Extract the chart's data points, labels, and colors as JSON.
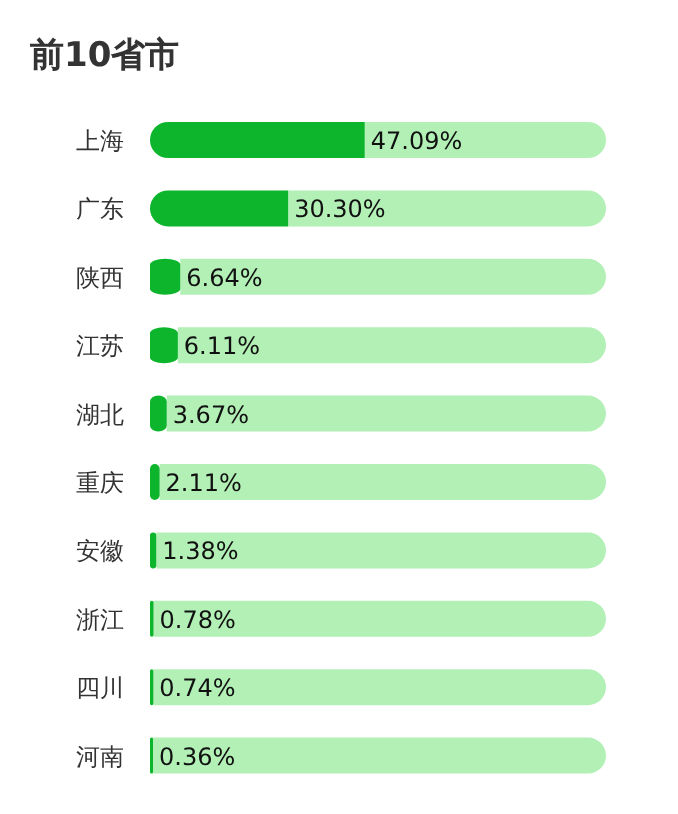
{
  "chart_data": {
    "type": "bar",
    "orientation": "horizontal",
    "stacked": true,
    "title": "前10省市",
    "categories": [
      "上海",
      "广东",
      "陕西",
      "江苏",
      "湖北",
      "重庆",
      "安徽",
      "浙江",
      "四川",
      "河南"
    ],
    "series": [
      {
        "color": "#0db52c",
        "values": [
          47.09,
          30.3,
          6.64,
          6.11,
          3.67,
          2.11,
          1.38,
          0.78,
          0.74,
          0.36
        ],
        "value_labels": [
          "47.09%",
          "30.30%",
          "6.64%",
          "6.11%",
          "3.67%",
          "2.11%",
          "1.38%",
          "0.78%",
          "0.74%",
          "0.36%"
        ]
      },
      {
        "color": "#b2f0b6",
        "values": [
          52.91,
          69.7,
          93.36,
          93.89,
          96.33,
          97.89,
          98.62,
          99.22,
          99.26,
          99.64
        ]
      }
    ],
    "xlim": [
      0,
      100
    ],
    "tick_labels": "y"
  }
}
